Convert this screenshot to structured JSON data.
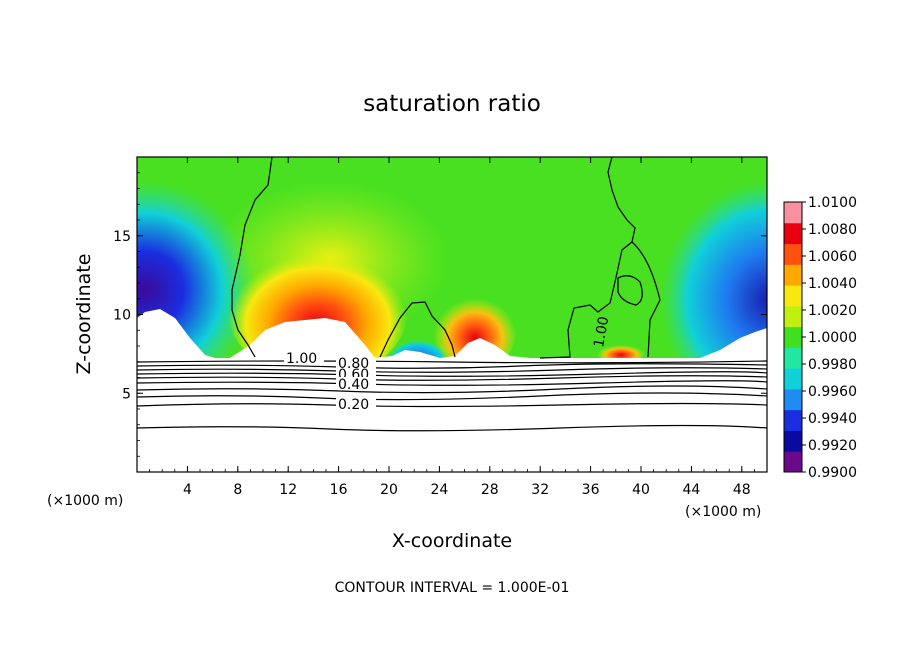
{
  "chart_data": {
    "type": "heatmap",
    "title": "saturation ratio",
    "xlabel": "X-coordinate",
    "ylabel": "Z-coordinate",
    "x_unit_left": "(×1000 m)",
    "x_unit_right": "(×1000 m)",
    "footer": "CONTOUR INTERVAL = 1.000E-01",
    "xlim": [
      0,
      50
    ],
    "ylim": [
      0,
      20
    ],
    "x_ticks": [
      "4",
      "8",
      "12",
      "16",
      "20",
      "24",
      "28",
      "32",
      "36",
      "40",
      "44",
      "48"
    ],
    "x_tick_values": [
      4,
      8,
      12,
      16,
      20,
      24,
      28,
      32,
      36,
      40,
      44,
      48
    ],
    "y_ticks": [
      "5",
      "10",
      "15"
    ],
    "y_tick_values": [
      5,
      10,
      15
    ],
    "colorbar": {
      "labels": [
        "1.0100",
        "1.0080",
        "1.0060",
        "1.0040",
        "1.0020",
        "1.0000",
        "0.9980",
        "0.9960",
        "0.9940",
        "0.9920",
        "0.9900"
      ],
      "values": [
        1.01,
        1.008,
        1.006,
        1.004,
        1.002,
        1.0,
        0.998,
        0.996,
        0.994,
        0.992,
        0.99
      ],
      "min": 0.99,
      "max": 1.01,
      "colors": [
        "#6a0a8a",
        "#0a0aa0",
        "#1a2ee0",
        "#1e8cf0",
        "#10d0d8",
        "#20e8a0",
        "#40e020",
        "#c0f010",
        "#f8e810",
        "#ffa800",
        "#ff5010",
        "#e80010",
        "#f890a0"
      ]
    },
    "contour_labels": [
      "1.00",
      "0.80",
      "0.60",
      "0.40",
      "0.20",
      "1.00"
    ],
    "contour_levels": [
      0.2,
      0.3,
      0.4,
      0.5,
      0.6,
      0.7,
      0.8,
      0.9,
      1.0
    ],
    "field_features": [
      {
        "x": 14.5,
        "z": 11,
        "value": 1.007,
        "note": "supersaturated plume over left dome"
      },
      {
        "x": 27,
        "z": 9.5,
        "value": 1.006
      },
      {
        "x": 38.5,
        "z": 7.8,
        "value": 1.006
      },
      {
        "x": 2,
        "z": 12,
        "value": 0.991
      },
      {
        "x": 48,
        "z": 12,
        "value": 0.992
      }
    ]
  }
}
